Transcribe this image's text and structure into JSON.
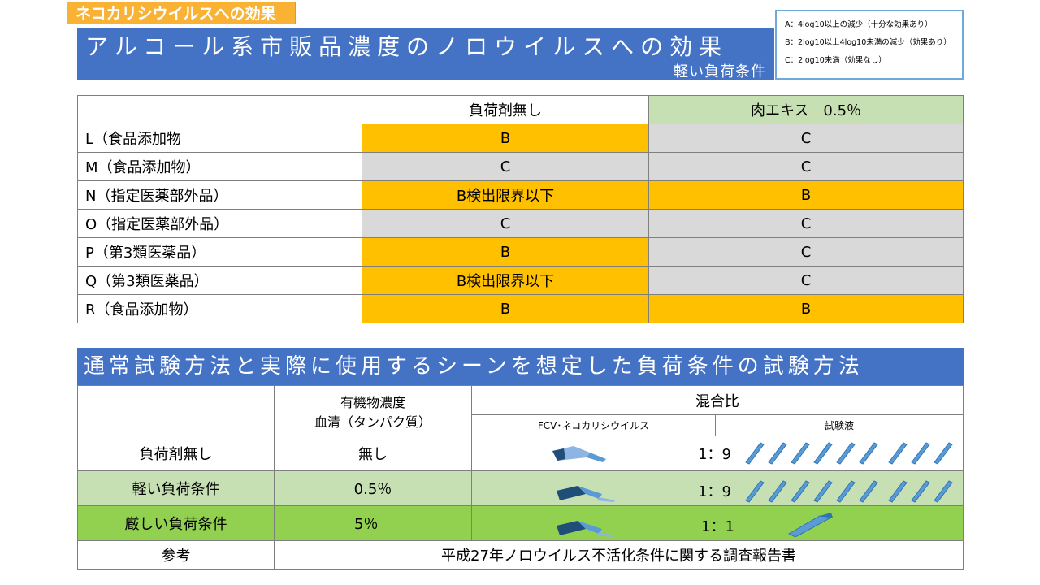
{
  "tag": "ネコカリシウイルスへの効果",
  "title": {
    "main": "アルコール系市販品濃度のノロウイルスへの効果",
    "sub": "軽い負荷条件"
  },
  "legend": [
    "A：4log10以上の減少（十分な効果あり）",
    "B：2log10以上4log10未満の減少（効果あり）",
    "C：2log10未満（効果なし）"
  ],
  "table1": {
    "headers": [
      "",
      "負荷剤無し",
      "肉エキス　0.5％"
    ],
    "rows": [
      {
        "name": "L（食品添加物",
        "a": "B",
        "b": "C",
        "a_cls": "B",
        "b_cls": "C"
      },
      {
        "name": "M（食品添加物）",
        "a": "C",
        "b": "C",
        "a_cls": "C",
        "b_cls": "C"
      },
      {
        "name": "N（指定医薬部外品）",
        "a": "B検出限界以下",
        "b": "B",
        "a_cls": "B",
        "b_cls": "B"
      },
      {
        "name": "O（指定医薬部外品）",
        "a": "C",
        "b": "C",
        "a_cls": "C",
        "b_cls": "C"
      },
      {
        "name": "P（第3類医薬品）",
        "a": "B",
        "b": "C",
        "a_cls": "B",
        "b_cls": "C"
      },
      {
        "name": "Q（第3類医薬品）",
        "a": "B検出限界以下",
        "b": "C",
        "a_cls": "B",
        "b_cls": "C"
      },
      {
        "name": "R（食品添加物）",
        "a": "B",
        "b": "B",
        "a_cls": "B",
        "b_cls": "B"
      }
    ]
  },
  "section2_title": "通常試験方法と実際に使用するシーンを想定した負荷条件の試験方法",
  "table2": {
    "h_organic_1": "有機物濃度",
    "h_organic_2": "血清（タンパク質）",
    "h_mix": "混合比",
    "h_fcv": "FCV･ネコカリシウイルス",
    "h_solution": "試験液",
    "rows": [
      {
        "label": "負荷剤無し",
        "conc": "無し",
        "ratio": "1：9"
      },
      {
        "label": "軽い負荷条件",
        "conc": "0.5％",
        "ratio": "1：9"
      },
      {
        "label": "厳しい負荷条件",
        "conc": "5％",
        "ratio": "1：1"
      }
    ],
    "ref_label": "参考",
    "ref_value": "平成27年ノロウイルス不活化条件に関する調査報告書"
  }
}
